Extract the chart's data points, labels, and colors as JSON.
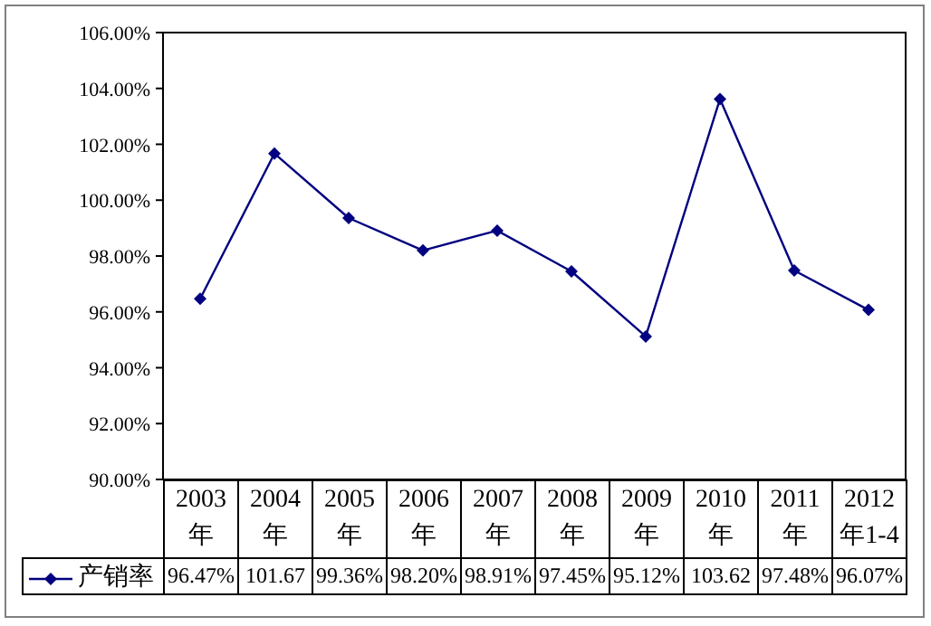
{
  "chart_data": {
    "type": "line",
    "categories": [
      "2003年",
      "2004年",
      "2005年",
      "2006年",
      "2007年",
      "2008年",
      "2009年",
      "2010年",
      "2011年",
      "2012年1-4"
    ],
    "series": [
      {
        "name": "产销率",
        "color": "#000080",
        "values": [
          96.47,
          101.67,
          99.36,
          98.2,
          98.91,
          97.45,
          95.12,
          103.62,
          97.48,
          96.07
        ],
        "value_labels": [
          "96.47%",
          "101.67",
          "99.36%",
          "98.20%",
          "98.91%",
          "97.45%",
          "95.12%",
          "103.62",
          "97.48%",
          "96.07%"
        ]
      }
    ],
    "ylim": [
      90,
      106
    ],
    "yticks": [
      {
        "value": 90,
        "label": "90.00%"
      },
      {
        "value": 92,
        "label": "92.00%"
      },
      {
        "value": 94,
        "label": "94.00%"
      },
      {
        "value": 96,
        "label": "96.00%"
      },
      {
        "value": 98,
        "label": "98.00%"
      },
      {
        "value": 100,
        "label": "100.00%"
      },
      {
        "value": 102,
        "label": "102.00%"
      },
      {
        "value": 104,
        "label": "104.00%"
      },
      {
        "value": 106,
        "label": "106.00%"
      }
    ],
    "marker": "diamond",
    "line_style": "solid",
    "grid": false,
    "legend": "bottom"
  }
}
